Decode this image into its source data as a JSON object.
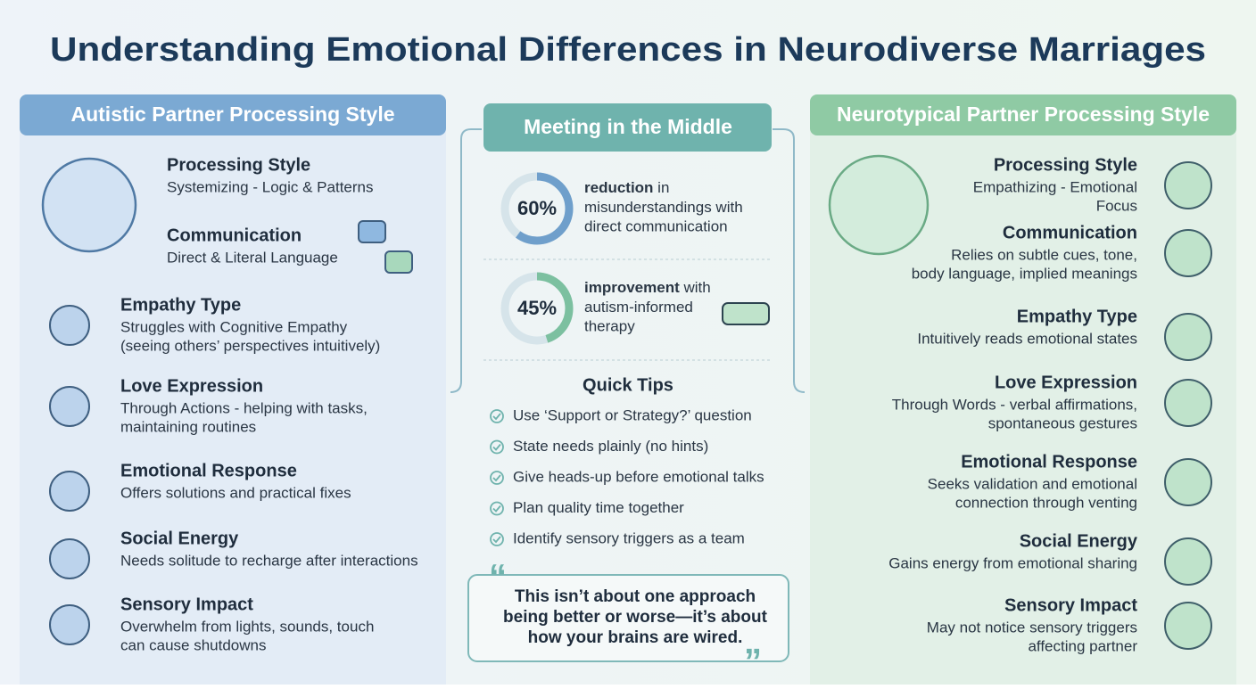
{
  "title": "Understanding Emotional Differences in Neurodiverse Marriages",
  "left": {
    "header": "Autistic Partner Processing Style",
    "items": [
      {
        "heading": "Processing Style",
        "desc": [
          "Systemizing - Logic & Patterns"
        ]
      },
      {
        "heading": "Communication",
        "desc": [
          "Direct & Literal Language"
        ]
      },
      {
        "heading": "Empathy Type",
        "desc": [
          "Struggles with Cognitive Empathy",
          "(seeing others’ perspectives intuitively)"
        ]
      },
      {
        "heading": "Love Expression",
        "desc": [
          "Through Actions - helping with tasks,",
          "maintaining routines"
        ]
      },
      {
        "heading": "Emotional Response",
        "desc": [
          "Offers solutions and practical fixes"
        ]
      },
      {
        "heading": "Social Energy",
        "desc": [
          "Needs solitude to recharge after interactions"
        ]
      },
      {
        "heading": "Sensory Impact",
        "desc": [
          "Overwhelm from lights, sounds, touch",
          "can cause shutdowns"
        ]
      }
    ]
  },
  "middle": {
    "header": "Meeting in the Middle",
    "stats": [
      {
        "value": 60,
        "label": "60%",
        "bold": "reduction",
        "lines": [
          " in",
          "misunderstandings with",
          "direct communication"
        ]
      },
      {
        "value": 45,
        "label": "45%",
        "bold": "improvement",
        "lines": [
          " with",
          "autism-informed",
          "therapy"
        ]
      }
    ],
    "tips_heading": "Quick Tips",
    "tips": [
      "Use ‘Support or Strategy?’ question",
      "State needs plainly (no hints)",
      "Give heads-up before emotional talks",
      "Plan quality time together",
      "Identify sensory triggers as a team"
    ],
    "quote": [
      "This isn’t about one approach",
      "being better or worse—it’s about",
      "how your brains are wired."
    ]
  },
  "right": {
    "header": "Neurotypical Partner Processing Style",
    "items": [
      {
        "heading": "Processing Style",
        "desc": [
          "Empathizing - Emotional",
          "Focus"
        ]
      },
      {
        "heading": "Communication",
        "desc": [
          "Relies on subtle cues, tone,",
          "body language, implied meanings"
        ]
      },
      {
        "heading": "Empathy Type",
        "desc": [
          "Intuitively reads emotional states"
        ]
      },
      {
        "heading": "Love Expression",
        "desc": [
          "Through Words - verbal affirmations,",
          "spontaneous gestures"
        ]
      },
      {
        "heading": "Emotional Response",
        "desc": [
          "Seeks validation and emotional",
          "connection through venting"
        ]
      },
      {
        "heading": "Social Energy",
        "desc": [
          "Gains energy from emotional sharing"
        ]
      },
      {
        "heading": "Sensory Impact",
        "desc": [
          "May not notice sensory triggers",
          "affecting partner"
        ]
      }
    ]
  }
}
